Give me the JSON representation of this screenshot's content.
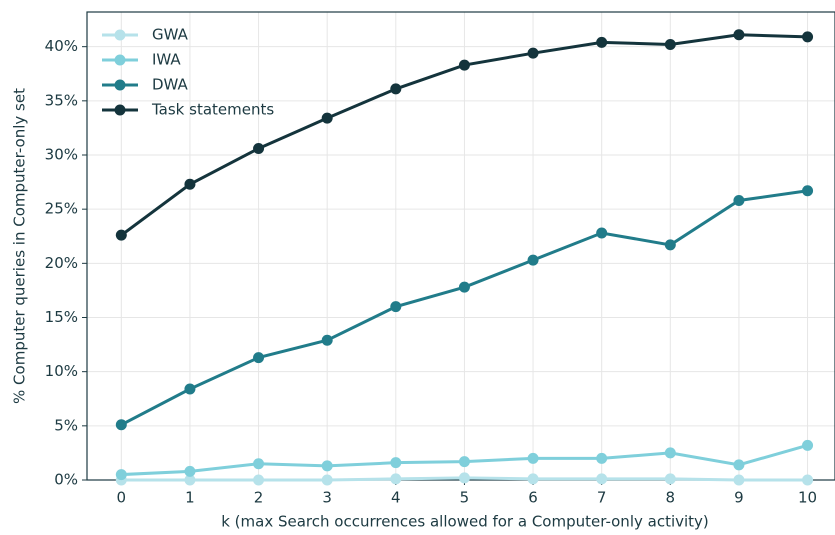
{
  "chart_data": {
    "type": "line",
    "xlabel": "k (max Search occurrences allowed for a Computer-only activity)",
    "ylabel": "% Computer queries in Computer-only set",
    "x": [
      0,
      1,
      2,
      3,
      4,
      5,
      6,
      7,
      8,
      9,
      10
    ],
    "series": [
      {
        "name": "GWA",
        "color": "#b6e2ea",
        "values": [
          0,
          0,
          0,
          0,
          0.1,
          0.2,
          0.1,
          0.1,
          0.1,
          0,
          0
        ]
      },
      {
        "name": "IWA",
        "color": "#7fcfdb",
        "values": [
          0.5,
          0.8,
          1.5,
          1.3,
          1.6,
          1.7,
          2.0,
          2.0,
          2.5,
          1.4,
          3.2
        ]
      },
      {
        "name": "DWA",
        "color": "#217c8a",
        "values": [
          5.1,
          8.4,
          11.3,
          12.9,
          16.0,
          17.8,
          20.3,
          22.8,
          21.7,
          25.8,
          26.7
        ]
      },
      {
        "name": "Task statements",
        "color": "#14343c",
        "values": [
          22.6,
          27.3,
          30.6,
          33.4,
          36.1,
          38.3,
          39.4,
          40.4,
          40.2,
          41.1,
          40.9
        ]
      }
    ],
    "xlim": [
      -0.5,
      10.4
    ],
    "xticks": [
      0,
      1,
      2,
      3,
      4,
      5,
      6,
      7,
      8,
      9,
      10
    ],
    "ylim": [
      0,
      43.2
    ],
    "yticks": [
      {
        "value": 0,
        "label": "0%"
      },
      {
        "value": 5,
        "label": "5%"
      },
      {
        "value": 10,
        "label": "10%"
      },
      {
        "value": 15,
        "label": "15%"
      },
      {
        "value": 20,
        "label": "20%"
      },
      {
        "value": 25,
        "label": "25%"
      },
      {
        "value": 30,
        "label": "30%"
      },
      {
        "value": 35,
        "label": "35%"
      },
      {
        "value": 40,
        "label": "40%"
      }
    ],
    "grid": true,
    "legend": "upper left"
  }
}
